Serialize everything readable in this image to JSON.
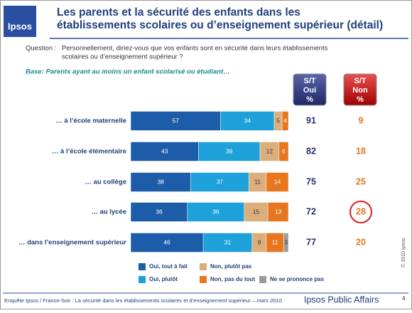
{
  "logo": "Ipsos",
  "title_lines": [
    "Les parents et la sécurité des enfants dans les",
    "établissements scolaires ou d’enseignement supérieur (détail)"
  ],
  "question_label": "Question :",
  "question_lines": [
    "Personnellement, diriez-vous que vos enfants sont en sécurité dans leurs établissements",
    "scolaires ou d’enseignement supérieur ?"
  ],
  "base": "Base: Parents ayant au moins un enfant scolarisé ou étudiant…",
  "chart_data": {
    "type": "stacked-bar-horizontal",
    "categories": [
      "… à l’école maternelle",
      "… à l’école élémentaire",
      "… au collège",
      "… au lycée",
      "… dans l’enseignement supérieur"
    ],
    "series": [
      {
        "name": "Oui, tout à fait",
        "color": "#1d5ca8",
        "values": [
          57,
          43,
          38,
          36,
          46
        ]
      },
      {
        "name": "Oui, plutôt",
        "color": "#1ea0d9",
        "values": [
          34,
          39,
          37,
          36,
          31
        ]
      },
      {
        "name": "Non, plutôt pas",
        "color": "#dcae7c",
        "values": [
          5,
          12,
          11,
          15,
          9
        ]
      },
      {
        "name": "Non, pas du tout",
        "color": "#e8761e",
        "values": [
          4,
          6,
          14,
          13,
          11
        ]
      },
      {
        "name": "Ne se prononce pas",
        "color": "#9b9b9b",
        "values": [
          0,
          0,
          0,
          0,
          3
        ]
      }
    ],
    "totals": [
      {
        "header": [
          "S/T",
          "Oui",
          "%"
        ],
        "color": "#27306b",
        "values": [
          91,
          82,
          75,
          72,
          77
        ]
      },
      {
        "header": [
          "S/T",
          "Non",
          "%"
        ],
        "color": "#e8761e",
        "values": [
          9,
          18,
          25,
          28,
          20
        ]
      }
    ]
  },
  "copyright": "© 2010 Ipsos",
  "footer": {
    "source": "Enquête Ipsos / France-Soir : La sécurité dans les établissements scolaires et d’enseignement supérieur",
    "date": "– mars 2010",
    "brand": "Ipsos Public Affairs",
    "page": "4"
  }
}
